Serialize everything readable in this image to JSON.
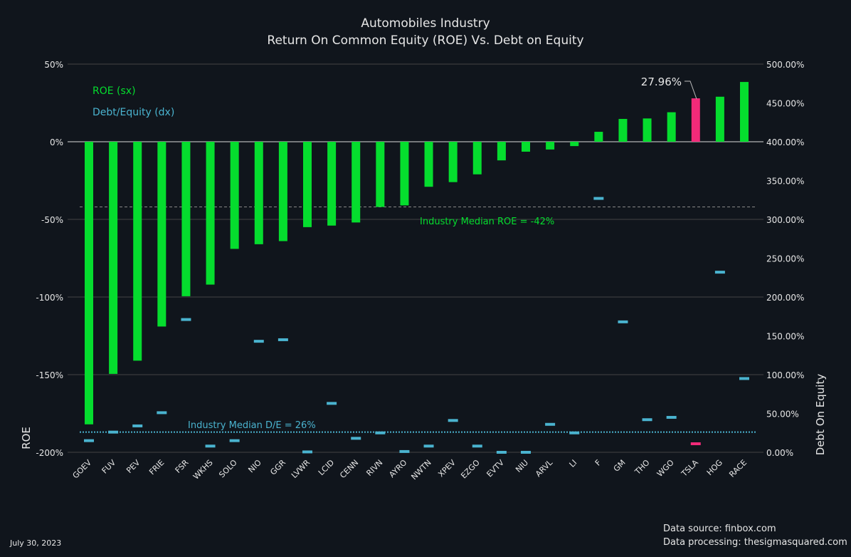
{
  "chart_data": {
    "type": "bar",
    "title": "Automobiles Industry",
    "subtitle": "Return On Common Equity (ROE) Vs. Debt on Equity",
    "ylabel": "ROE",
    "y2label": "Debt On Equity",
    "ylim": [
      -200,
      50
    ],
    "y2lim": [
      0,
      500
    ],
    "yticks": [
      "50%",
      "0%",
      "-50%",
      "-100%",
      "-150%",
      "-200%"
    ],
    "y2ticks": [
      "500.00%",
      "450.00%",
      "400.00%",
      "350.00%",
      "300.00%",
      "250.00%",
      "200.00%",
      "150.00%",
      "100.00%",
      "50.00%",
      "0.00%"
    ],
    "grid": true,
    "legend": {
      "position": "top-left",
      "entries": [
        "ROE (sx)",
        "Debt/Equity (dx)"
      ]
    },
    "categories": [
      "GOEV",
      "FUV",
      "PEV",
      "FRIE",
      "FSR",
      "WKHS",
      "SOLO",
      "NIO",
      "GGR",
      "LVWR",
      "LCID",
      "CENN",
      "RIVN",
      "AYRO",
      "NWTN",
      "XPEV",
      "EZGO",
      "EVTV",
      "NIU",
      "ARVL",
      "LI",
      "F",
      "GM",
      "THO",
      "WGO",
      "TSLA",
      "HOG",
      "RACE"
    ],
    "series": [
      {
        "name": "ROE (sx)",
        "axis": "left",
        "values": [
          -182,
          -149.5,
          -141,
          -119,
          -99.5,
          -92,
          -69,
          -66,
          -64,
          -55,
          -54,
          -52,
          -42,
          -41,
          -29,
          -26,
          -21,
          -12,
          -6.4,
          -5,
          -2.8,
          6.4,
          14.7,
          15,
          19,
          27.96,
          29,
          38.5
        ]
      },
      {
        "name": "Debt/Equity (dx)",
        "axis": "right",
        "values": [
          15,
          26,
          34,
          51,
          171,
          8,
          15,
          143,
          145,
          0.5,
          63,
          18,
          25,
          1,
          8,
          41,
          8,
          0,
          0,
          36,
          25,
          327,
          168,
          42,
          45,
          11,
          232,
          95
        ]
      }
    ],
    "highlight": {
      "category": "TSLA",
      "label": "27.96%"
    },
    "annotations": {
      "median_roe": {
        "label": "Industry Median ROE =  -42%",
        "value": -42
      },
      "median_de": {
        "label": "Industry Median D/E =  26%",
        "value": 26
      }
    },
    "colors": {
      "roe": "#05dd2e",
      "de": "#4ab3cf",
      "highlight": "#f22a79",
      "bg": "#10151c"
    }
  },
  "footer": {
    "date": "July 30, 2023",
    "source": "Data source: finbox.com",
    "processing": "Data processing: thesigmasquared.com"
  }
}
